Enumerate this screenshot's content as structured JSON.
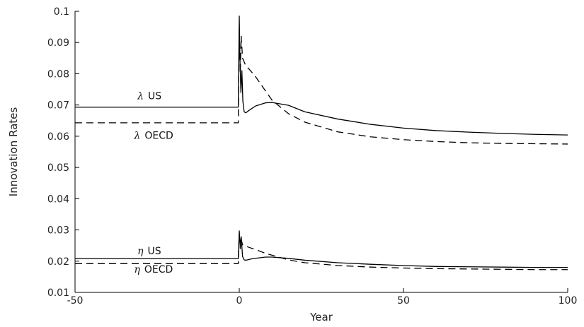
{
  "chart_data": {
    "type": "line",
    "title": "",
    "xlabel": "Year",
    "ylabel": "Innovation Rates",
    "xlim": [
      -50,
      100
    ],
    "ylim": [
      0.01,
      0.1
    ],
    "xticks": [
      -50,
      0,
      50,
      100
    ],
    "yticks": [
      0.01,
      0.02,
      0.03,
      0.04,
      0.05,
      0.06,
      0.07,
      0.08,
      0.09,
      0.1
    ],
    "xtick_labels": [
      "-50",
      "0",
      "50",
      "100"
    ],
    "ytick_labels": [
      "0.01",
      "0.02",
      "0.03",
      "0.04",
      "0.05",
      "0.06",
      "0.07",
      "0.08",
      "0.09",
      "0.1"
    ],
    "grid": false,
    "series": [
      {
        "name": "λ US",
        "label_greek": "λ",
        "label_text": "US",
        "style": "solid",
        "color": "#000000",
        "x": [
          -50,
          -1,
          -0.3,
          0,
          0.2,
          0.5,
          0.8,
          1.1,
          1.5,
          2,
          3,
          5,
          8,
          10,
          15,
          20,
          30,
          40,
          50,
          60,
          70,
          80,
          90,
          100
        ],
        "y": [
          0.0693,
          0.0693,
          0.0693,
          0.0985,
          0.085,
          0.074,
          0.081,
          0.0712,
          0.0678,
          0.0675,
          0.0683,
          0.0697,
          0.0707,
          0.0708,
          0.0699,
          0.0678,
          0.0655,
          0.0638,
          0.0626,
          0.0618,
          0.0613,
          0.0609,
          0.0606,
          0.0604
        ]
      },
      {
        "name": "λ OECD",
        "label_greek": "λ",
        "label_text": "OECD",
        "style": "dashed",
        "color": "#000000",
        "x": [
          -50,
          -1,
          -0.3,
          0,
          0.3,
          0.6,
          1,
          1.5,
          2,
          3,
          5,
          8,
          10,
          15,
          20,
          30,
          40,
          50,
          60,
          70,
          80,
          90,
          100
        ],
        "y": [
          0.0643,
          0.0643,
          0.0643,
          0.0945,
          0.08,
          0.092,
          0.085,
          0.0838,
          0.0825,
          0.0815,
          0.079,
          0.0745,
          0.0715,
          0.0672,
          0.0645,
          0.0614,
          0.0598,
          0.0589,
          0.0583,
          0.0579,
          0.0577,
          0.0576,
          0.0575
        ]
      },
      {
        "name": "η US",
        "label_greek": "η",
        "label_text": "US",
        "style": "solid",
        "color": "#000000",
        "x": [
          -50,
          -1,
          -0.3,
          0,
          0.3,
          0.6,
          1,
          1.5,
          2,
          4,
          8,
          10,
          15,
          20,
          30,
          40,
          50,
          60,
          70,
          80,
          90,
          100
        ],
        "y": [
          0.0208,
          0.0208,
          0.0208,
          0.0297,
          0.025,
          0.0278,
          0.0215,
          0.0204,
          0.0203,
          0.0208,
          0.0213,
          0.0213,
          0.0209,
          0.0203,
          0.0195,
          0.019,
          0.0186,
          0.0183,
          0.0182,
          0.0181,
          0.018,
          0.018
        ]
      },
      {
        "name": "η OECD",
        "label_greek": "η",
        "label_text": "OECD",
        "style": "dashed",
        "color": "#000000",
        "x": [
          -50,
          -1,
          -0.3,
          0,
          0.3,
          0.6,
          1,
          2,
          3,
          5,
          8,
          10,
          15,
          20,
          30,
          40,
          50,
          60,
          70,
          80,
          90,
          100
        ],
        "y": [
          0.0192,
          0.0192,
          0.0192,
          0.0285,
          0.024,
          0.027,
          0.0252,
          0.0248,
          0.0244,
          0.0237,
          0.0225,
          0.0219,
          0.0204,
          0.0195,
          0.0186,
          0.0181,
          0.0178,
          0.0176,
          0.0175,
          0.0174,
          0.0173,
          0.0173
        ]
      }
    ],
    "annotations": [
      {
        "series": 0,
        "greek": "λ",
        "text": "US",
        "x": -31,
        "y": 0.0718
      },
      {
        "series": 1,
        "greek": "λ",
        "text": "OECD",
        "x": -32,
        "y": 0.0592
      },
      {
        "series": 2,
        "greek": "η",
        "text": "US",
        "x": -31,
        "y": 0.0222
      },
      {
        "series": 3,
        "greek": "η",
        "text": "OECD",
        "x": -32,
        "y": 0.0163
      }
    ]
  }
}
